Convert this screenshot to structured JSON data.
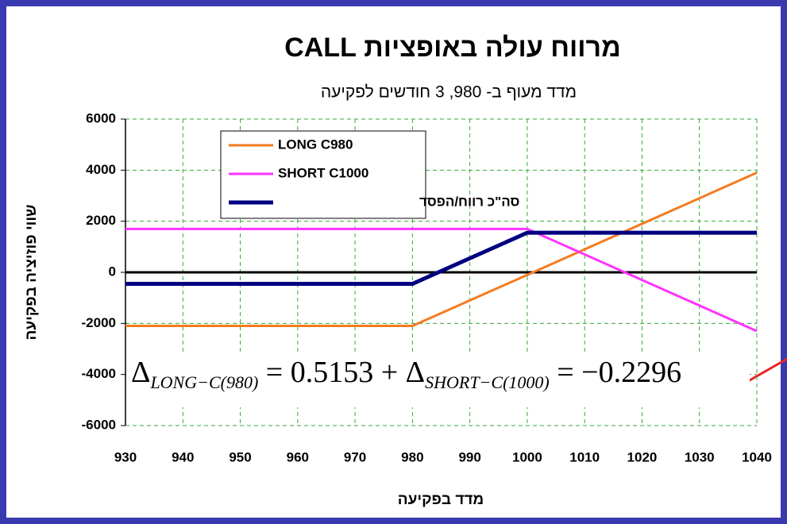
{
  "chart_data": {
    "type": "line",
    "title": "מרווח עולה באופציות CALL",
    "subtitle": "מדד מעוף ב- 980, 3 חודשים לפקיעה",
    "x_label": "מדד בפקיעה",
    "y_label": "שווי פוזיציה בפקיעה",
    "x": [
      930,
      980,
      1000,
      1040
    ],
    "series": [
      {
        "name": "LONG C980",
        "color": "#f47b20",
        "values": [
          -2100,
          -2100,
          -100,
          3900
        ]
      },
      {
        "name": "SHORT C1000",
        "color": "#ff33ff",
        "values": [
          1700,
          1700,
          1700,
          -2300
        ]
      },
      {
        "name": "סה\"כ רווח/הפסד",
        "color": "#000080",
        "values": [
          -450,
          -450,
          1550,
          1550
        ]
      }
    ],
    "xlim": [
      930,
      1040
    ],
    "xticks": [
      930,
      940,
      950,
      960,
      970,
      980,
      990,
      1000,
      1010,
      1020,
      1030,
      1040
    ],
    "ylim": [
      -6000,
      6000
    ],
    "yticks": [
      -6000,
      -4000,
      -2000,
      0,
      2000,
      4000,
      6000
    ],
    "grid": true,
    "legend": "top-left",
    "annotation": [
      "Δ",
      "LONG−C(980)",
      " = 0.5153 + ",
      "Δ",
      "SHORT−C(1000)",
      " = −0.2296"
    ]
  }
}
